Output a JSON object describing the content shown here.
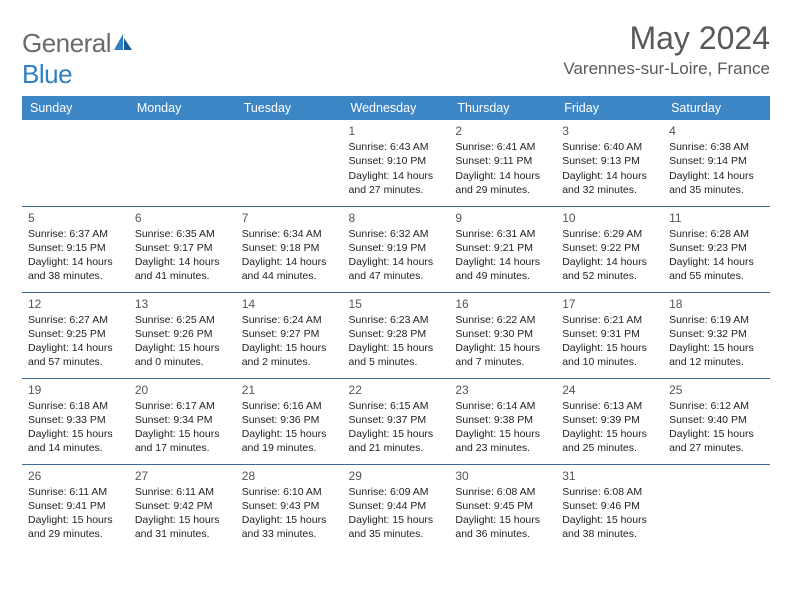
{
  "logo": {
    "text_general": "General",
    "text_blue": "Blue"
  },
  "title": "May 2024",
  "location": "Varennes-sur-Loire, France",
  "header_bg": "#3d86c6",
  "header_text_color": "#ffffff",
  "row_border_color": "#3d6a9a",
  "text_color": "#222222",
  "muted_color": "#595959",
  "days": [
    "Sunday",
    "Monday",
    "Tuesday",
    "Wednesday",
    "Thursday",
    "Friday",
    "Saturday"
  ],
  "weeks": [
    [
      null,
      null,
      null,
      {
        "n": "1",
        "sr": "6:43 AM",
        "ss": "9:10 PM",
        "dl": "14 hours and 27 minutes."
      },
      {
        "n": "2",
        "sr": "6:41 AM",
        "ss": "9:11 PM",
        "dl": "14 hours and 29 minutes."
      },
      {
        "n": "3",
        "sr": "6:40 AM",
        "ss": "9:13 PM",
        "dl": "14 hours and 32 minutes."
      },
      {
        "n": "4",
        "sr": "6:38 AM",
        "ss": "9:14 PM",
        "dl": "14 hours and 35 minutes."
      }
    ],
    [
      {
        "n": "5",
        "sr": "6:37 AM",
        "ss": "9:15 PM",
        "dl": "14 hours and 38 minutes."
      },
      {
        "n": "6",
        "sr": "6:35 AM",
        "ss": "9:17 PM",
        "dl": "14 hours and 41 minutes."
      },
      {
        "n": "7",
        "sr": "6:34 AM",
        "ss": "9:18 PM",
        "dl": "14 hours and 44 minutes."
      },
      {
        "n": "8",
        "sr": "6:32 AM",
        "ss": "9:19 PM",
        "dl": "14 hours and 47 minutes."
      },
      {
        "n": "9",
        "sr": "6:31 AM",
        "ss": "9:21 PM",
        "dl": "14 hours and 49 minutes."
      },
      {
        "n": "10",
        "sr": "6:29 AM",
        "ss": "9:22 PM",
        "dl": "14 hours and 52 minutes."
      },
      {
        "n": "11",
        "sr": "6:28 AM",
        "ss": "9:23 PM",
        "dl": "14 hours and 55 minutes."
      }
    ],
    [
      {
        "n": "12",
        "sr": "6:27 AM",
        "ss": "9:25 PM",
        "dl": "14 hours and 57 minutes."
      },
      {
        "n": "13",
        "sr": "6:25 AM",
        "ss": "9:26 PM",
        "dl": "15 hours and 0 minutes."
      },
      {
        "n": "14",
        "sr": "6:24 AM",
        "ss": "9:27 PM",
        "dl": "15 hours and 2 minutes."
      },
      {
        "n": "15",
        "sr": "6:23 AM",
        "ss": "9:28 PM",
        "dl": "15 hours and 5 minutes."
      },
      {
        "n": "16",
        "sr": "6:22 AM",
        "ss": "9:30 PM",
        "dl": "15 hours and 7 minutes."
      },
      {
        "n": "17",
        "sr": "6:21 AM",
        "ss": "9:31 PM",
        "dl": "15 hours and 10 minutes."
      },
      {
        "n": "18",
        "sr": "6:19 AM",
        "ss": "9:32 PM",
        "dl": "15 hours and 12 minutes."
      }
    ],
    [
      {
        "n": "19",
        "sr": "6:18 AM",
        "ss": "9:33 PM",
        "dl": "15 hours and 14 minutes."
      },
      {
        "n": "20",
        "sr": "6:17 AM",
        "ss": "9:34 PM",
        "dl": "15 hours and 17 minutes."
      },
      {
        "n": "21",
        "sr": "6:16 AM",
        "ss": "9:36 PM",
        "dl": "15 hours and 19 minutes."
      },
      {
        "n": "22",
        "sr": "6:15 AM",
        "ss": "9:37 PM",
        "dl": "15 hours and 21 minutes."
      },
      {
        "n": "23",
        "sr": "6:14 AM",
        "ss": "9:38 PM",
        "dl": "15 hours and 23 minutes."
      },
      {
        "n": "24",
        "sr": "6:13 AM",
        "ss": "9:39 PM",
        "dl": "15 hours and 25 minutes."
      },
      {
        "n": "25",
        "sr": "6:12 AM",
        "ss": "9:40 PM",
        "dl": "15 hours and 27 minutes."
      }
    ],
    [
      {
        "n": "26",
        "sr": "6:11 AM",
        "ss": "9:41 PM",
        "dl": "15 hours and 29 minutes."
      },
      {
        "n": "27",
        "sr": "6:11 AM",
        "ss": "9:42 PM",
        "dl": "15 hours and 31 minutes."
      },
      {
        "n": "28",
        "sr": "6:10 AM",
        "ss": "9:43 PM",
        "dl": "15 hours and 33 minutes."
      },
      {
        "n": "29",
        "sr": "6:09 AM",
        "ss": "9:44 PM",
        "dl": "15 hours and 35 minutes."
      },
      {
        "n": "30",
        "sr": "6:08 AM",
        "ss": "9:45 PM",
        "dl": "15 hours and 36 minutes."
      },
      {
        "n": "31",
        "sr": "6:08 AM",
        "ss": "9:46 PM",
        "dl": "15 hours and 38 minutes."
      },
      null
    ]
  ],
  "labels": {
    "sunrise": "Sunrise:",
    "sunset": "Sunset:",
    "daylight": "Daylight:"
  }
}
